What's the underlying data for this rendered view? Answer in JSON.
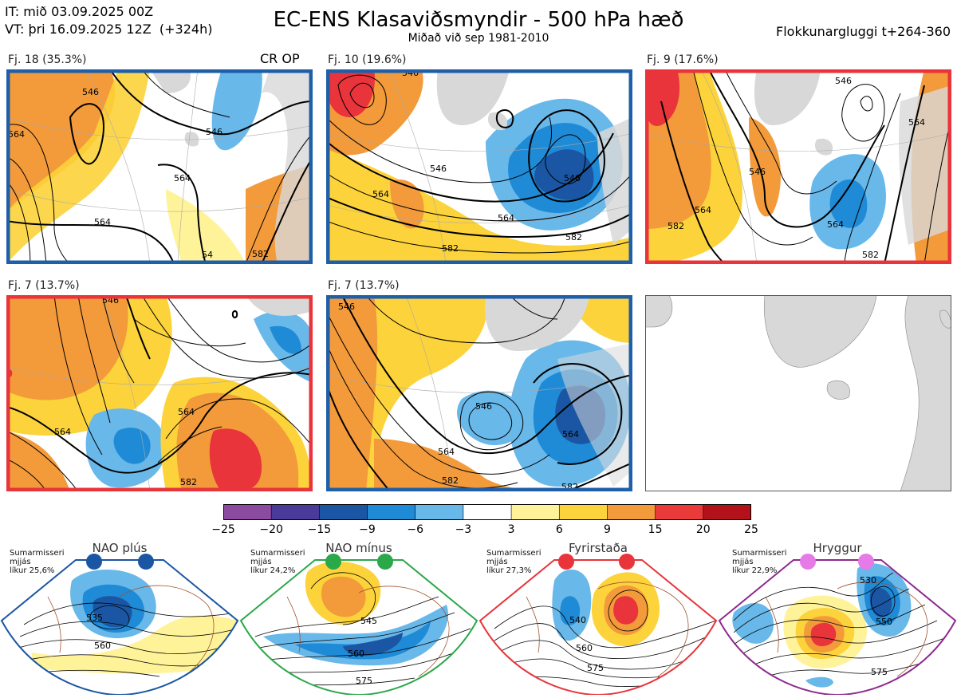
{
  "header": {
    "it_line": "IT: mið 03.09.2025 00Z",
    "vt_line": "VT: þri 16.09.2025 12Z  (+324h)",
    "title": "EC-ENS Klasaviðsmyndir - 500 hPa hæð",
    "subtitle": "Miðað við sep 1981-2010",
    "window": "Flokkunargluggi t+264-360"
  },
  "clusters": [
    {
      "label": "Fj. 18 (35.3%)",
      "tag": "CR OP",
      "frame_color": "#1f5fa8",
      "contours": [
        "546",
        "564",
        "564",
        "564",
        "582",
        "546",
        "54"
      ]
    },
    {
      "label": "Fj. 10 (19.6%)",
      "tag": "",
      "frame_color": "#1f5fa8",
      "contours": [
        "546",
        "546",
        "564",
        "564",
        "582",
        "582",
        "546"
      ]
    },
    {
      "label": "Fj. 9 (17.6%)",
      "tag": "",
      "frame_color": "#e8343a",
      "contours": [
        "546",
        "564",
        "546",
        "564",
        "582",
        "564",
        "582"
      ]
    },
    {
      "label": "Fj. 7 (13.7%)",
      "tag": "",
      "frame_color": "#e8343a",
      "contours": [
        "564",
        "546",
        "564",
        "582"
      ]
    },
    {
      "label": "Fj. 7 (13.7%)",
      "tag": "",
      "frame_color": "#1f5fa8",
      "contours": [
        "546",
        "546",
        "564",
        "564",
        "582",
        "582"
      ]
    }
  ],
  "colorbar": {
    "ticks": [
      "−25",
      "−20",
      "−15",
      "−9",
      "−6",
      "−3",
      "3",
      "6",
      "9",
      "15",
      "20",
      "25"
    ],
    "colors": [
      "#8a4ba1",
      "#4a3a9a",
      "#1a56a3",
      "#1f8ad6",
      "#68b8ea",
      "#ffffff",
      "#fff39a",
      "#fcd33a",
      "#f39a3a",
      "#ea3a3a",
      "#b3121a"
    ]
  },
  "regimes": [
    {
      "name": "NAO plús",
      "season": "Sumarmisseri",
      "smooth": "mjjás",
      "prob": "líkur 25,6%",
      "color": "#1a56a3",
      "contours": [
        "535",
        "560"
      ]
    },
    {
      "name": "NAO mínus",
      "season": "Sumarmisseri",
      "smooth": "mjjás",
      "prob": "líkur 24,2%",
      "color": "#2aa84a",
      "contours": [
        "545",
        "560",
        "575"
      ]
    },
    {
      "name": "Fyrirstaða",
      "season": "Sumarmisseri",
      "smooth": "mjjás",
      "prob": "líkur 27,3%",
      "color": "#e8343a",
      "contours": [
        "540",
        "560",
        "575"
      ]
    },
    {
      "name": "Hryggur",
      "season": "Sumarmisseri",
      "smooth": "mjjás",
      "prob": "líkur 22,9%",
      "color": "#e67ae6",
      "contours": [
        "530",
        "550",
        "575"
      ]
    }
  ]
}
